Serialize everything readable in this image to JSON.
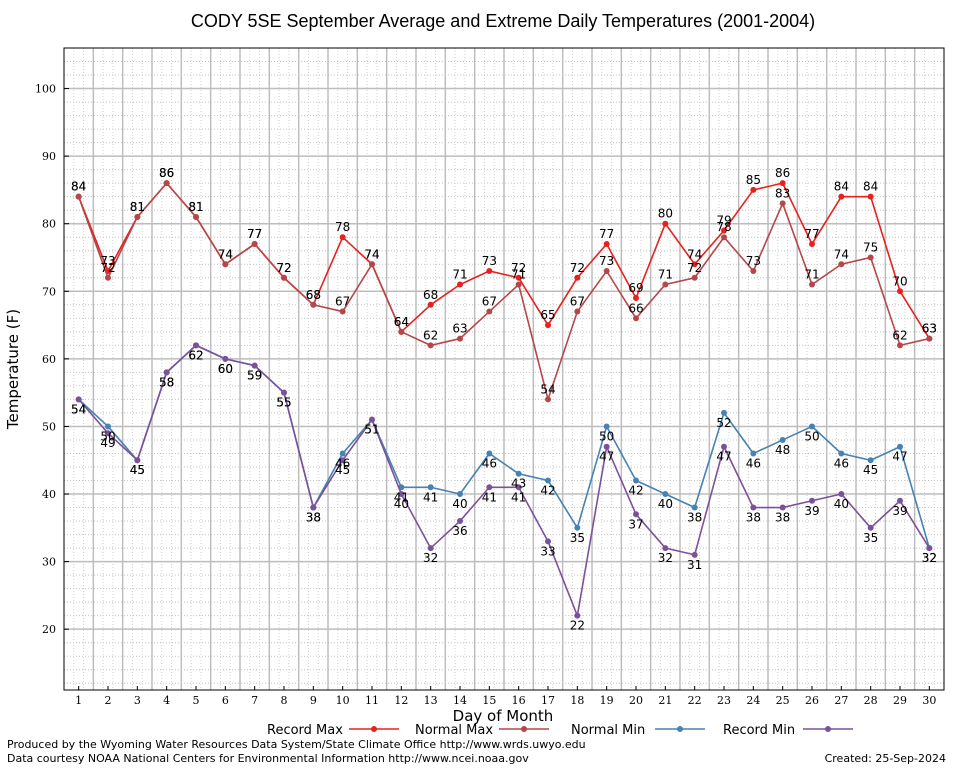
{
  "chart_data": {
    "type": "line",
    "title": "CODY 5SE September Average and Extreme Daily Temperatures (2001-2004)",
    "xlabel": "Day of Month",
    "ylabel": "Temperature (F)",
    "x": [
      1,
      2,
      3,
      4,
      5,
      6,
      7,
      8,
      9,
      10,
      11,
      12,
      13,
      14,
      15,
      16,
      17,
      18,
      19,
      20,
      21,
      22,
      23,
      24,
      25,
      26,
      27,
      28,
      29,
      30
    ],
    "xlim": [
      0.5,
      30.5
    ],
    "ylim": [
      11,
      106
    ],
    "yticks": [
      20,
      30,
      40,
      50,
      60,
      70,
      80,
      90,
      100
    ],
    "grid": true,
    "legend_position": "bottom",
    "series": [
      {
        "name": "Record Max",
        "color": "#e8211f",
        "values": [
          84,
          73,
          81,
          86,
          81,
          74,
          77,
          72,
          68,
          78,
          74,
          64,
          68,
          71,
          73,
          72,
          65,
          72,
          77,
          69,
          80,
          74,
          79,
          85,
          86,
          77,
          84,
          84,
          70,
          63
        ]
      },
      {
        "name": "Normal Max",
        "color": "#b5474a",
        "values": [
          84,
          72,
          81,
          86,
          81,
          74,
          77,
          72,
          68,
          67,
          74,
          64,
          62,
          63,
          67,
          71,
          54,
          67,
          73,
          66,
          71,
          72,
          78,
          73,
          83,
          71,
          74,
          75,
          62,
          63
        ]
      },
      {
        "name": "Normal Min",
        "color": "#4682b4",
        "values": [
          54,
          50,
          45,
          58,
          62,
          60,
          59,
          55,
          38,
          46,
          51,
          41,
          41,
          40,
          46,
          43,
          42,
          35,
          50,
          42,
          40,
          38,
          52,
          46,
          48,
          50,
          46,
          45,
          47,
          32
        ]
      },
      {
        "name": "Record Min",
        "color": "#7b529a",
        "values": [
          54,
          49,
          45,
          58,
          62,
          60,
          59,
          55,
          38,
          45,
          51,
          40,
          32,
          36,
          41,
          41,
          33,
          22,
          47,
          37,
          32,
          31,
          47,
          38,
          38,
          39,
          40,
          35,
          39,
          32
        ]
      }
    ]
  },
  "footer": {
    "produced_by": "Produced by the Wyoming Water Resources Data System/State Climate Office http://www.wrds.uwyo.edu",
    "courtesy": "Data courtesy NOAA National Centers for Environmental Information http://www.ncei.noaa.gov",
    "created": "Created:  25-Sep-2024"
  }
}
